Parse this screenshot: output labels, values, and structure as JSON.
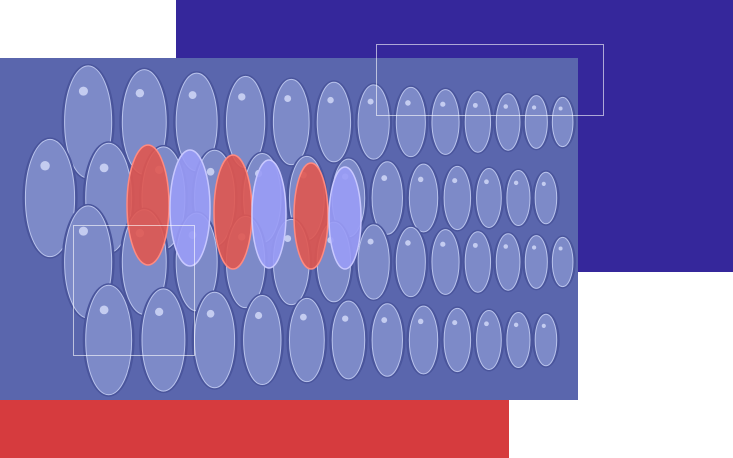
{
  "colors": {
    "background": "#ffffff",
    "purple_block": "#35279b",
    "red_block": "#d63b3e",
    "photo_tint": "#6f7cc0",
    "barrel_fill": "#7d8ac8",
    "barrel_highlight_red": "#e0574f",
    "barrel_highlight_blue": "#9a9cf6"
  },
  "photo": {
    "subject": "barrels",
    "highlighted_barrels": [
      "red",
      "blue",
      "red",
      "blue",
      "red",
      "blue"
    ]
  }
}
